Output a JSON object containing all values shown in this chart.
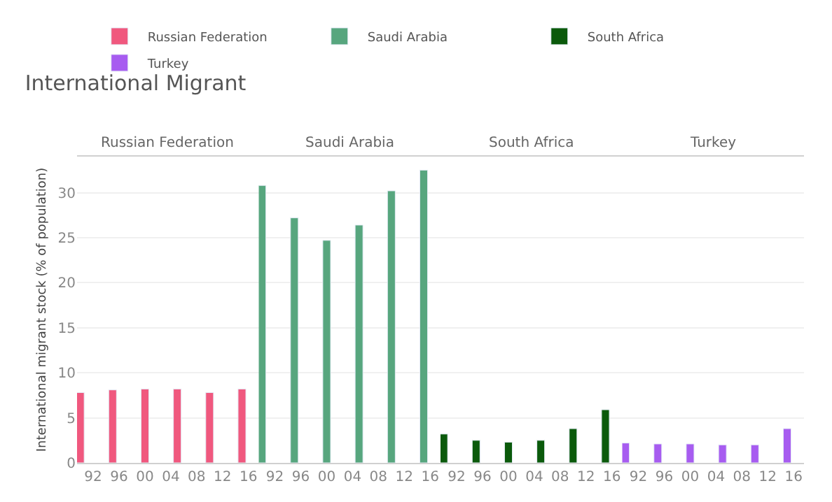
{
  "chart_data": [
    {
      "type": "bar",
      "title": "International Migrant",
      "ylabel": "International migrant stock (% of population)",
      "legend": "top",
      "grid": "y",
      "x": [
        1990,
        1995,
        2000,
        2005,
        2010,
        2015
      ],
      "series": [
        {
          "name": "Russian Federation",
          "color": "#f0587e",
          "values": [
            7.8,
            8.1,
            8.2,
            8.2,
            7.8,
            8.2
          ]
        }
      ],
      "xlim": [
        1989.5,
        2017.6
      ],
      "xticks": [
        {
          "value": 1992,
          "label": "92"
        },
        {
          "value": 1996,
          "label": "96"
        },
        {
          "value": 2000,
          "label": "00"
        },
        {
          "value": 2004,
          "label": "04"
        },
        {
          "value": 2008,
          "label": "08"
        },
        {
          "value": 2012,
          "label": "12"
        },
        {
          "value": 2016,
          "label": "16"
        }
      ],
      "ylim": [
        0,
        34
      ],
      "yticks": [
        0,
        5,
        10,
        15,
        20,
        25,
        30
      ]
    },
    {
      "type": "bar",
      "legend": "top",
      "grid": "y",
      "tick_labels": "x",
      "x": [
        1990,
        1995,
        2000,
        2005,
        2010,
        2015
      ],
      "series": [
        {
          "name": "Saudi Arabia",
          "color": "#57a67e",
          "values": [
            30.8,
            27.2,
            24.7,
            26.4,
            30.2,
            32.5
          ]
        }
      ],
      "xlim": [
        1989.5,
        2017.6
      ],
      "xticks": [
        {
          "value": 1992,
          "label": "92"
        },
        {
          "value": 1996,
          "label": "96"
        },
        {
          "value": 2000,
          "label": "00"
        },
        {
          "value": 2004,
          "label": "04"
        },
        {
          "value": 2008,
          "label": "08"
        },
        {
          "value": 2012,
          "label": "12"
        },
        {
          "value": 2016,
          "label": "16"
        }
      ],
      "ylim": [
        0,
        34
      ],
      "yticks": [
        0,
        5,
        10,
        15,
        20,
        25,
        30
      ]
    },
    {
      "type": "bar",
      "legend": "top",
      "grid": "y",
      "tick_labels": "x",
      "x": [
        1990,
        1995,
        2000,
        2005,
        2010,
        2015
      ],
      "series": [
        {
          "name": "South Africa",
          "color": "#0b5a0b",
          "values": [
            3.2,
            2.5,
            2.3,
            2.5,
            3.8,
            5.9
          ]
        }
      ],
      "xlim": [
        1989.5,
        2017.6
      ],
      "xticks": [
        {
          "value": 1992,
          "label": "92"
        },
        {
          "value": 1996,
          "label": "96"
        },
        {
          "value": 2000,
          "label": "00"
        },
        {
          "value": 2004,
          "label": "04"
        },
        {
          "value": 2008,
          "label": "08"
        },
        {
          "value": 2012,
          "label": "12"
        },
        {
          "value": 2016,
          "label": "16"
        }
      ],
      "ylim": [
        0,
        34
      ],
      "yticks": [
        0,
        5,
        10,
        15,
        20,
        25,
        30
      ]
    },
    {
      "type": "bar",
      "legend": "top",
      "grid": "y",
      "tick_labels": "x",
      "x": [
        1990,
        1995,
        2000,
        2005,
        2010,
        2015
      ],
      "series": [
        {
          "name": "Turkey",
          "color": "#a75cf0",
          "values": [
            2.2,
            2.1,
            2.1,
            2.0,
            2.0,
            3.8
          ]
        }
      ],
      "xlim": [
        1989.5,
        2017.6
      ],
      "xticks": [
        {
          "value": 1992,
          "label": "92"
        },
        {
          "value": 1996,
          "label": "96"
        },
        {
          "value": 2000,
          "label": "00"
        },
        {
          "value": 2004,
          "label": "04"
        },
        {
          "value": 2008,
          "label": "08"
        },
        {
          "value": 2012,
          "label": "12"
        },
        {
          "value": 2016,
          "label": "16"
        }
      ],
      "ylim": [
        0,
        34
      ],
      "yticks": [
        0,
        5,
        10,
        15,
        20,
        25,
        30
      ]
    }
  ]
}
